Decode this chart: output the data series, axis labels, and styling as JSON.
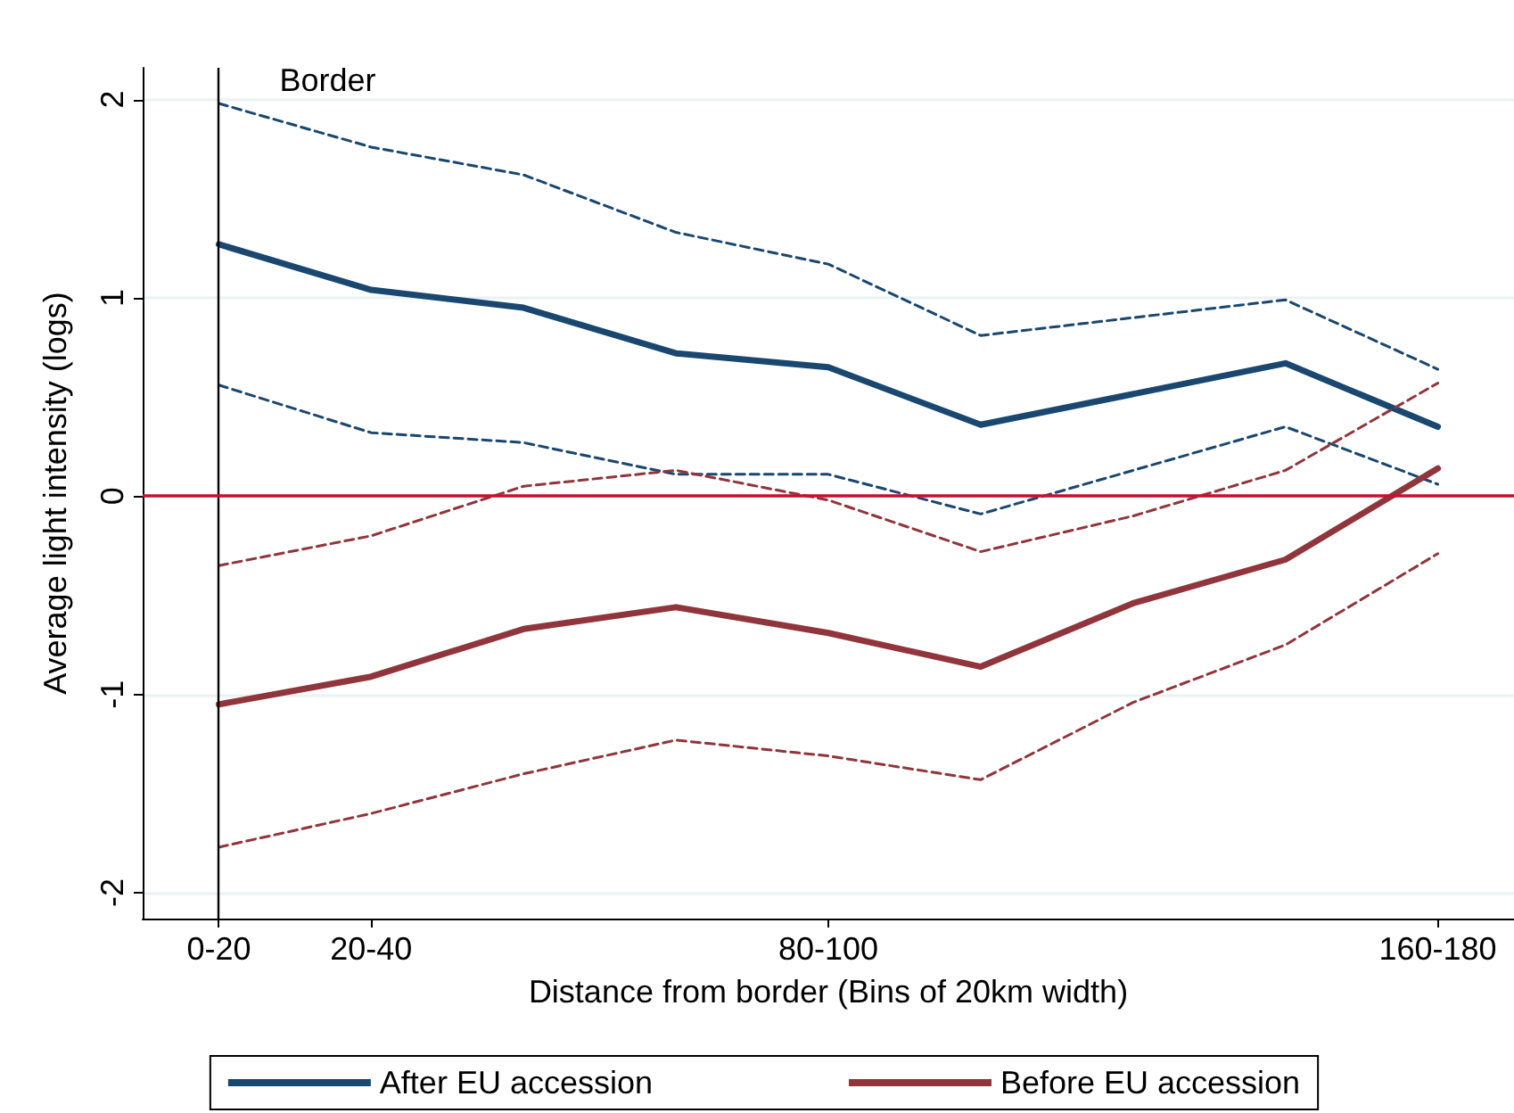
{
  "chart_data": {
    "type": "line",
    "xlabel": "Distance from border (Bins of 20km width)",
    "ylabel": "Average light intensity (logs)",
    "categories": [
      "0-20",
      "20-40",
      null,
      null,
      "80-100",
      null,
      null,
      null,
      "160-180"
    ],
    "ylim": [
      -2.13,
      2.16
    ],
    "yticks": [
      -2,
      -1,
      0,
      1,
      2
    ],
    "grid": "y",
    "legend": "bottom",
    "marker": "none",
    "line_style": "solid",
    "series": [
      {
        "name": "After EU accession",
        "color": "#1a476f",
        "values": [
          1.27,
          1.04,
          0.95,
          0.72,
          0.65,
          0.36,
          null,
          0.67,
          0.35
        ]
      },
      {
        "color": "#1a476f",
        "line_style": "dashed",
        "values": [
          0.56,
          0.32,
          0.27,
          0.11,
          0.11,
          -0.09,
          null,
          0.35,
          0.06
        ]
      },
      {
        "color": "#1a476f",
        "line_style": "dashed",
        "values": [
          1.98,
          1.76,
          1.62,
          1.33,
          1.17,
          0.81,
          null,
          0.99,
          0.64
        ]
      },
      {
        "name": "Before EU accession",
        "color": "#90353b",
        "values": [
          -1.05,
          -0.91,
          -0.67,
          -0.56,
          -0.69,
          -0.86,
          -0.54,
          -0.32,
          0.14
        ]
      },
      {
        "color": "#90353b",
        "line_style": "dashed",
        "values": [
          -1.77,
          -1.6,
          -1.4,
          -1.23,
          -1.31,
          -1.43,
          -1.04,
          -0.75,
          -0.29
        ]
      },
      {
        "color": "#90353b",
        "line_style": "dashed",
        "values": [
          -0.35,
          -0.2,
          0.05,
          0.13,
          -0.02,
          -0.28,
          -0.1,
          0.13,
          0.57
        ]
      }
    ],
    "ref_lines": [
      {
        "axis": "x",
        "value": "0-20",
        "label": "Border",
        "color": "#000000"
      },
      {
        "axis": "y",
        "value": 0,
        "color": "#c8102e"
      }
    ]
  }
}
